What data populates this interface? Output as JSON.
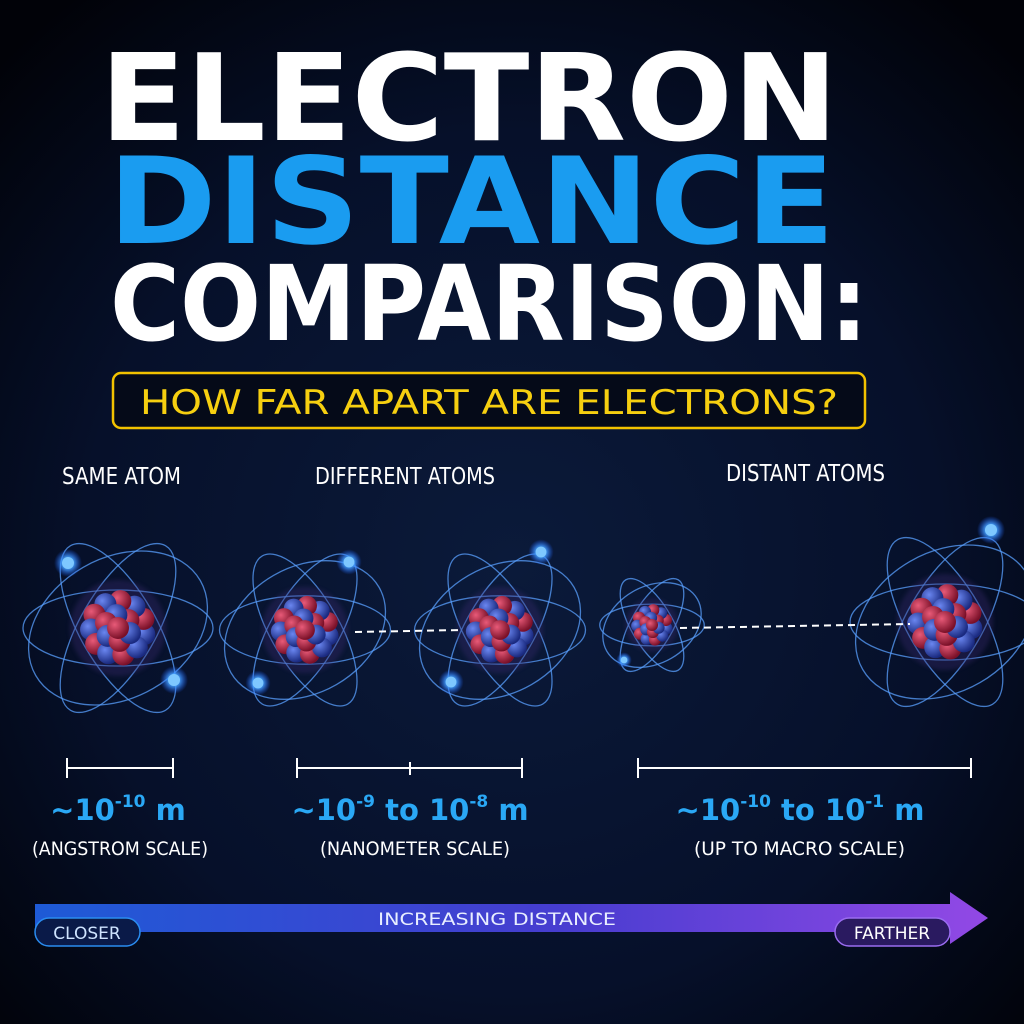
{
  "header": {
    "title_lines": [
      "ELECTRON",
      "DISTANCE",
      "COMPARISON:"
    ],
    "subtitle": "HOW FAR APART ARE ELECTRONS?"
  },
  "sections": [
    {
      "label": "SAME ATOM",
      "distance": [
        {
          "text": "~10"
        },
        {
          "sup": "-10"
        },
        {
          "text": " m"
        }
      ],
      "scale": "(ANGSTROM SCALE)"
    },
    {
      "label": "DIFFERENT ATOMS",
      "distance": [
        {
          "text": "~10"
        },
        {
          "sup": "-9"
        },
        {
          "text": " to 10"
        },
        {
          "sup": "-8"
        },
        {
          "text": " m"
        }
      ],
      "scale": "(NANOMETER SCALE)"
    },
    {
      "label": "DISTANT ATOMS",
      "distance": [
        {
          "text": "~10"
        },
        {
          "sup": "-10"
        },
        {
          "text": " to 10"
        },
        {
          "sup": "-1"
        },
        {
          "text": " m"
        }
      ],
      "scale": "(UP TO MACRO SCALE)"
    }
  ],
  "axis": {
    "start": "CLOSER",
    "label": "INCREASING DISTANCE",
    "end": "FARTHER"
  }
}
